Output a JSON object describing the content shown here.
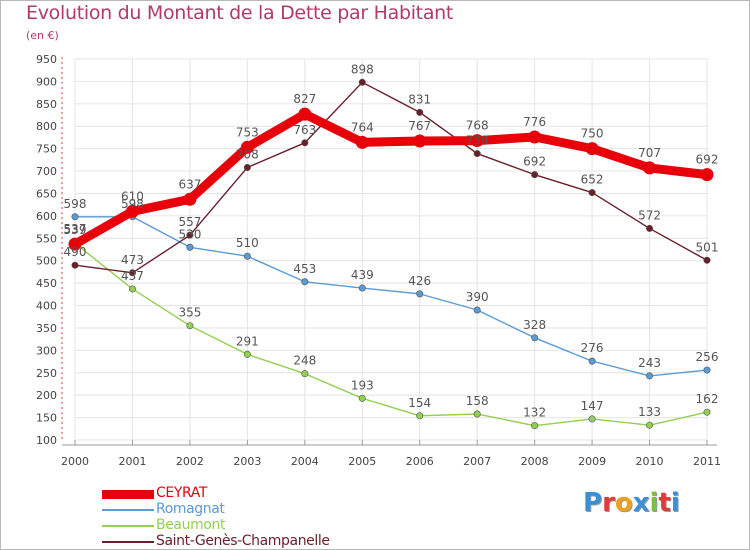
{
  "title": "Evolution du Montant de la Dette par Habitant",
  "subtitle": "(en €)",
  "logo": {
    "text": "Proxiti",
    "letter_colors": [
      "#3a8fd9",
      "#e03a3a",
      "#f0a020",
      "#3a8fd9",
      "#7ac043",
      "#e03a3a",
      "#3a8fd9"
    ]
  },
  "chart_data": {
    "type": "line",
    "x": [
      2000,
      2001,
      2002,
      2003,
      2004,
      2005,
      2006,
      2007,
      2008,
      2009,
      2010,
      2011
    ],
    "ylim": [
      100,
      950
    ],
    "yticks": [
      100,
      150,
      200,
      250,
      300,
      350,
      400,
      450,
      500,
      550,
      600,
      650,
      700,
      750,
      800,
      850,
      900,
      950
    ],
    "grid": true,
    "legend_position": "bottom-left",
    "series": [
      {
        "name": "CEYRAT",
        "color": "#e8000b",
        "emphasis": true,
        "values": [
          537,
          610,
          637,
          753,
          827,
          764,
          767,
          768,
          776,
          750,
          707,
          692
        ],
        "labels": [
          "537",
          "610",
          "637",
          "753",
          "827",
          "764",
          "767",
          "768",
          "776",
          "750",
          "707",
          "692"
        ]
      },
      {
        "name": "Romagnat",
        "color": "#5b9bd5",
        "values": [
          598,
          598,
          530,
          510,
          453,
          439,
          426,
          390,
          328,
          276,
          243,
          256
        ],
        "labels": [
          "598",
          "598",
          "530",
          "510",
          "453",
          "439",
          "426",
          "390",
          "328",
          "276",
          "243",
          "256"
        ]
      },
      {
        "name": "Beaumont",
        "color": "#92d050",
        "values": [
          539,
          437,
          355,
          291,
          248,
          193,
          154,
          158,
          132,
          147,
          133,
          162
        ],
        "labels": [
          "539",
          "437",
          "355",
          "291",
          "248",
          "193",
          "154",
          "158",
          "132",
          "147",
          "133",
          "162"
        ]
      },
      {
        "name": "Saint-Genès-Champanelle",
        "color": "#6b1f2a",
        "values": [
          490,
          473,
          557,
          708,
          763,
          898,
          831,
          739,
          692,
          652,
          572,
          501
        ],
        "labels": [
          "490",
          "473",
          "557",
          "708",
          "763",
          "898",
          "831",
          "739",
          "692",
          "652",
          "572",
          "501"
        ]
      }
    ]
  }
}
